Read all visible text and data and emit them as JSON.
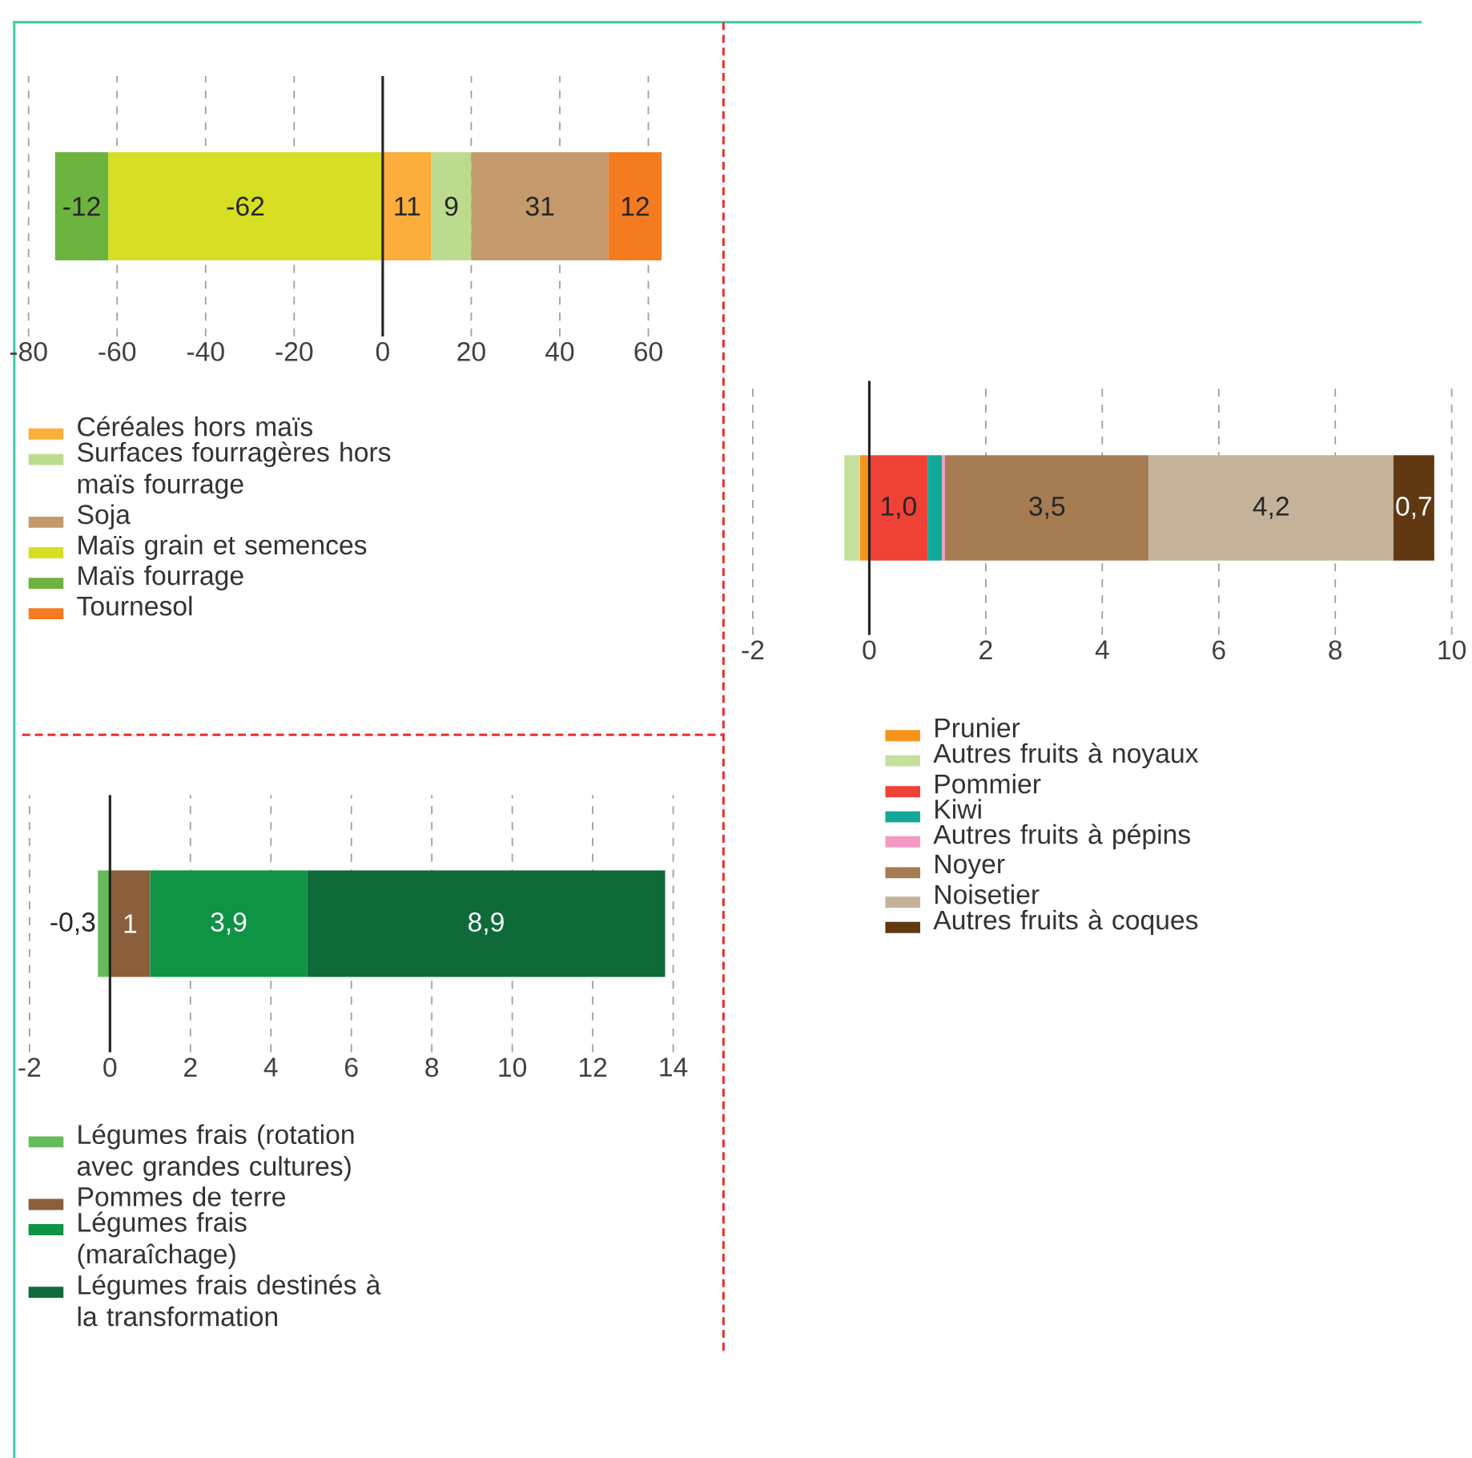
{
  "chart_data": [
    {
      "type": "bar",
      "orientation": "horizontal",
      "stacked": true,
      "categories": [
        null
      ],
      "tick_labels": "x",
      "grid": "x",
      "legend": "bottom",
      "xlim": [
        -80,
        63
      ],
      "xticks": [
        -80,
        -60,
        -40,
        -20,
        0,
        20,
        40,
        60
      ],
      "series": [
        {
          "name": "Céréales hors maïs",
          "color": "#fbae3c",
          "values": [
            11
          ],
          "value_labels": [
            "11"
          ]
        },
        {
          "name": "Surfaces fourragères hors maïs fourrage",
          "color": "#bcdb8f",
          "values": [
            9
          ],
          "value_labels": [
            "9"
          ]
        },
        {
          "name": "Soja",
          "color": "#c49a6c",
          "values": [
            31
          ],
          "value_labels": [
            "31"
          ]
        },
        {
          "name": "Maïs grain et semences",
          "color": "#d6df23",
          "values": [
            -62
          ],
          "value_labels": [
            "-62"
          ]
        },
        {
          "name": "Maïs fourrage",
          "color": "#6cb33f",
          "values": [
            -12
          ],
          "value_labels": [
            "-12"
          ]
        },
        {
          "name": "Tournesol",
          "color": "#f47b20",
          "values": [
            12
          ],
          "value_labels": [
            "12"
          ]
        }
      ]
    },
    {
      "type": "bar",
      "orientation": "horizontal",
      "stacked": true,
      "categories": [
        null
      ],
      "tick_labels": "x",
      "grid": "x",
      "legend": "bottom",
      "xlim": [
        -2,
        10
      ],
      "xticks": [
        -2,
        0,
        2,
        4,
        6,
        8,
        10
      ],
      "series": [
        {
          "name": "Prunier",
          "color": "#f7941d",
          "values": [
            -0.16
          ],
          "value_labels": [
            null
          ]
        },
        {
          "name": "Autres fruits à noyaux",
          "color": "#c5e09b",
          "values": [
            -0.27
          ],
          "value_labels": [
            null
          ]
        },
        {
          "name": "Pommier",
          "color": "#ef4136",
          "values": [
            1.0
          ],
          "value_labels": [
            "1,0"
          ]
        },
        {
          "name": "Kiwi",
          "color": "#14a89b",
          "values": [
            0.25
          ],
          "value_labels": [
            null
          ]
        },
        {
          "name": "Autres fruits à pépins",
          "color": "#f49ac1",
          "values": [
            0.05
          ],
          "value_labels": [
            null
          ]
        },
        {
          "name": "Noyer",
          "color": "#a67c52",
          "values": [
            3.5
          ],
          "value_labels": [
            "3,5"
          ]
        },
        {
          "name": "Noisetier",
          "color": "#c4b39a",
          "values": [
            4.2
          ],
          "value_labels": [
            "4,2"
          ]
        },
        {
          "name": "Autres fruits à coques",
          "color": "#603913",
          "values": [
            0.7
          ],
          "value_labels": [
            "0,7"
          ]
        }
      ]
    },
    {
      "type": "bar",
      "orientation": "horizontal",
      "stacked": true,
      "categories": [
        null
      ],
      "tick_labels": "x",
      "grid": "x",
      "legend": "bottom",
      "xlim": [
        -2,
        14
      ],
      "xticks": [
        -2,
        0,
        2,
        4,
        6,
        8,
        10,
        12,
        14
      ],
      "series": [
        {
          "name": "Légumes frais (rotation avec grandes cultures)",
          "color": "#66bb5c",
          "values": [
            -0.3
          ],
          "value_labels": [
            "-0,3"
          ]
        },
        {
          "name": "Pommes de terre",
          "color": "#8b5e3c",
          "values": [
            1
          ],
          "value_labels": [
            "1"
          ]
        },
        {
          "name": "Légumes frais (maraîchage)",
          "color": "#0f9345",
          "values": [
            3.9
          ],
          "value_labels": [
            "3,9"
          ]
        },
        {
          "name": "Légumes frais destinés à la transformation",
          "color": "#0f6a3a",
          "values": [
            8.9
          ],
          "value_labels": [
            "8,9"
          ]
        }
      ]
    }
  ]
}
